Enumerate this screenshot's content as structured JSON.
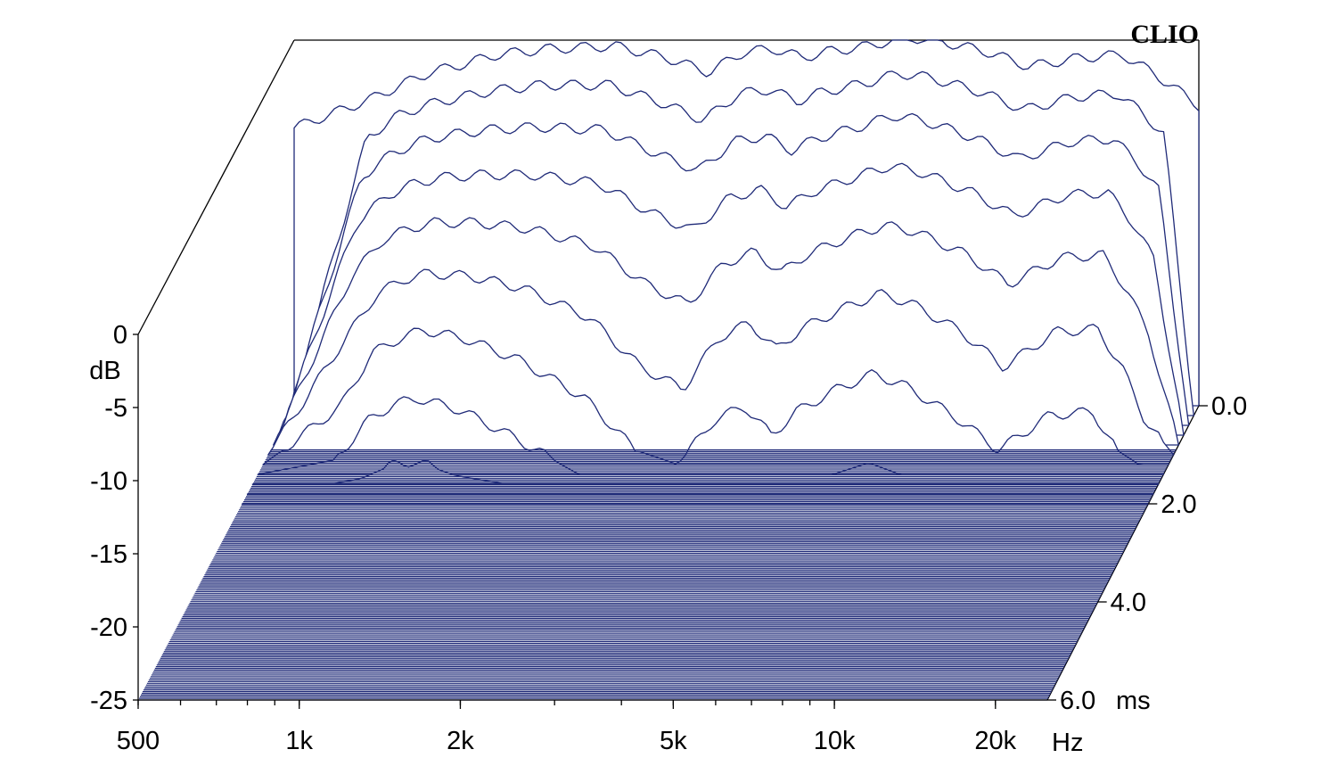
{
  "brand": "CLIO",
  "chart_data": {
    "type": "waterfall",
    "title": "",
    "x_axis": {
      "scale": "log",
      "range": [
        500,
        25000
      ],
      "ticks": [
        {
          "value": 500,
          "label": "500"
        },
        {
          "value": 1000,
          "label": "1k"
        },
        {
          "value": 2000,
          "label": "2k"
        },
        {
          "value": 5000,
          "label": "5k"
        },
        {
          "value": 10000,
          "label": "10k"
        },
        {
          "value": 20000,
          "label": "20k"
        }
      ],
      "unit_label": "Hz"
    },
    "y_axis": {
      "range": [
        -25,
        0
      ],
      "ticks": [
        {
          "value": 0,
          "label": "0"
        },
        {
          "value": -5,
          "label": "-5"
        },
        {
          "value": -10,
          "label": "-10"
        },
        {
          "value": -15,
          "label": "-15"
        },
        {
          "value": -20,
          "label": "-20"
        },
        {
          "value": -25,
          "label": "-25"
        }
      ],
      "label": "dB"
    },
    "z_axis": {
      "range": [
        0,
        6
      ],
      "ticks": [
        {
          "value": 0,
          "label": "0.0"
        },
        {
          "value": 2,
          "label": "2.0"
        },
        {
          "value": 4,
          "label": "4.0"
        },
        {
          "value": 6,
          "label": "6.0"
        }
      ],
      "unit_label": "ms"
    },
    "frequency_points": [
      500,
      700,
      800,
      900,
      1000,
      1200,
      1500,
      2000,
      2500,
      3000,
      3500,
      4000,
      4500,
      5000,
      6000,
      7000,
      8000,
      10000,
      12000,
      15000,
      18000,
      20000,
      22000,
      25000
    ],
    "initial_response_db": [
      -6,
      -4,
      -3,
      -2.2,
      -1.8,
      -1.0,
      -0.6,
      -0.4,
      -1.2,
      -2.2,
      -0.8,
      -0.6,
      -1.2,
      -0.8,
      -0.4,
      0.2,
      0.0,
      -0.8,
      -1.8,
      -1.2,
      -1.0,
      -2.0,
      -3.0,
      -4.5
    ],
    "slices": [
      {
        "time_ms": 0.0,
        "db": [
          -6,
          -4,
          -3,
          -2.2,
          -1.8,
          -1.0,
          -0.6,
          -0.4,
          -1.2,
          -2.2,
          -0.8,
          -0.6,
          -1.2,
          -0.8,
          -0.4,
          0.2,
          0.0,
          -0.8,
          -1.8,
          -1.2,
          -1.0,
          -2.0,
          -3.0,
          -4.5
        ]
      },
      {
        "time_ms": 0.2,
        "db": [
          -25,
          -6,
          -4.5,
          -3.8,
          -3.4,
          -2.8,
          -2.4,
          -2.4,
          -3.6,
          -4.8,
          -3.0,
          -2.7,
          -3.5,
          -2.9,
          -2.3,
          -1.6,
          -1.9,
          -2.9,
          -4.1,
          -3.2,
          -3.0,
          -4.3,
          -5.8,
          -25
        ]
      },
      {
        "time_ms": 0.4,
        "db": [
          -25,
          -8,
          -6.4,
          -5.6,
          -5.2,
          -4.8,
          -4.6,
          -4.8,
          -6.4,
          -7.6,
          -5.6,
          -5.2,
          -6.2,
          -5.4,
          -4.6,
          -3.8,
          -4.2,
          -5.4,
          -6.8,
          -5.6,
          -5.4,
          -7.0,
          -9.0,
          -25
        ]
      },
      {
        "time_ms": 0.6,
        "db": [
          -25,
          -10.5,
          -8.6,
          -7.8,
          -7.4,
          -7.2,
          -7.2,
          -7.8,
          -9.8,
          -11.0,
          -8.8,
          -8.2,
          -9.4,
          -8.4,
          -7.4,
          -6.6,
          -7.0,
          -8.4,
          -10.0,
          -8.6,
          -8.4,
          -10.4,
          -13.0,
          -25
        ]
      },
      {
        "time_ms": 0.8,
        "db": [
          -25,
          -13.5,
          -11.0,
          -10.2,
          -9.8,
          -9.8,
          -10.2,
          -11.4,
          -14.0,
          -15.4,
          -12.6,
          -11.8,
          -13.2,
          -12.0,
          -10.8,
          -10.0,
          -10.4,
          -12.0,
          -14.0,
          -12.2,
          -12.0,
          -14.4,
          -17.5,
          -25
        ]
      },
      {
        "time_ms": 1.0,
        "db": [
          -25,
          -17,
          -14.0,
          -13.0,
          -12.6,
          -12.8,
          -13.6,
          -15.6,
          -19.0,
          -20.5,
          -17.0,
          -16.0,
          -17.8,
          -16.4,
          -15.0,
          -14.0,
          -14.6,
          -16.6,
          -19.0,
          -16.6,
          -16.4,
          -19.0,
          -22.5,
          -25
        ]
      },
      {
        "time_ms": 1.2,
        "db": [
          -25,
          -21,
          -17.4,
          -16.4,
          -15.8,
          -16.4,
          -17.8,
          -20.4,
          -24.0,
          -25,
          -22.0,
          -21.0,
          -23.0,
          -21.4,
          -19.8,
          -18.8,
          -19.6,
          -21.8,
          -24.0,
          -21.6,
          -21.4,
          -24.0,
          -25,
          -25
        ]
      },
      {
        "time_ms": 1.4,
        "db": [
          -25,
          -24,
          -21.4,
          -20.2,
          -19.8,
          -20.6,
          -22.4,
          -25,
          -25,
          -25,
          -25,
          -25,
          -25,
          -25,
          -25,
          -24.2,
          -25,
          -25,
          -25,
          -25,
          -25,
          -25,
          -25,
          -25
        ]
      },
      {
        "time_ms": 1.6,
        "db": [
          -25,
          -25,
          -24.6,
          -23.8,
          -23.4,
          -24.4,
          -25,
          -25,
          -25,
          -25,
          -25,
          -25,
          -25,
          -25,
          -25,
          -25,
          -25,
          -25,
          -25,
          -25,
          -25,
          -25,
          -25,
          -25
        ]
      },
      {
        "time_ms": 1.8,
        "db": [
          -25,
          -25,
          -25,
          -25,
          -25,
          -25,
          -25,
          -25,
          -25,
          -25,
          -25,
          -25,
          -25,
          -25,
          -25,
          -25,
          -25,
          -25,
          -25,
          -25,
          -25,
          -25,
          -25,
          -25
        ]
      },
      {
        "time_ms": 2.0,
        "db": [
          -25,
          -25,
          -25,
          -25,
          -25,
          -25,
          -25,
          -25,
          -25,
          -25,
          -25,
          -25,
          -25,
          -25,
          -25,
          -25,
          -25,
          -25,
          -25,
          -25,
          -25,
          -25,
          -25,
          -25
        ]
      }
    ],
    "floor_db": -25,
    "grid": false,
    "legend": "none",
    "colors": {
      "lines": "#1f2a78",
      "axes": "#000000",
      "background": "#ffffff"
    }
  }
}
